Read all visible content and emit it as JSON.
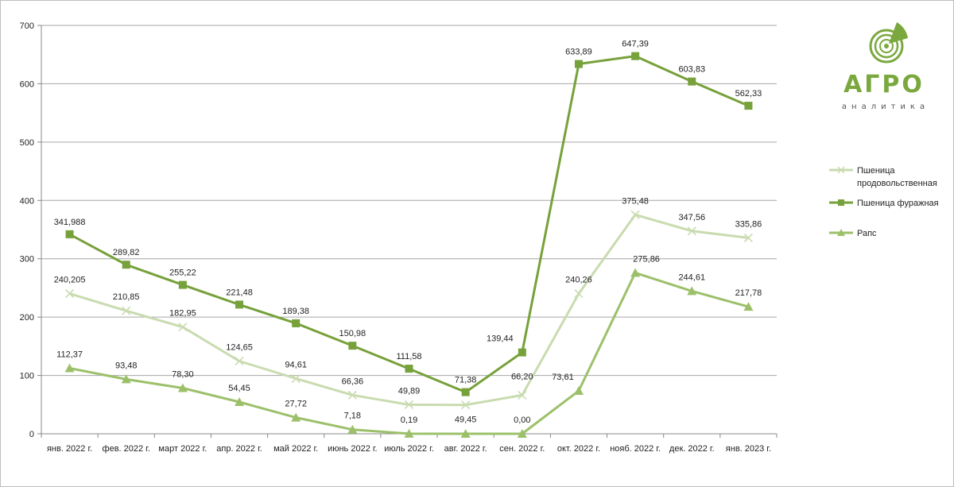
{
  "chart_data": {
    "type": "line",
    "title": "",
    "xlabel": "",
    "ylabel": "",
    "ylim": [
      0,
      700
    ],
    "yticks": [
      "0",
      "100",
      "200",
      "300",
      "400",
      "500",
      "600",
      "700"
    ],
    "categories": [
      "янв. 2022 г.",
      "фев. 2022 г.",
      "март 2022 г.",
      "апр. 2022 г.",
      "май 2022 г.",
      "июнь 2022 г.",
      "июль 2022 г.",
      "авг. 2022 г.",
      "сен. 2022 г.",
      "окт. 2022 г.",
      "нояб. 2022 г.",
      "дек. 2022 г.",
      "янв. 2023 г."
    ],
    "grid": true,
    "legend_position": "right",
    "series": [
      {
        "name": "Пшеница продовольственная",
        "legend_lines": [
          "Пшеница",
          "продовольственная"
        ],
        "marker": "x",
        "color": "#c9dbb0",
        "values": [
          240.205,
          210.85,
          182.95,
          124.65,
          94.61,
          66.36,
          49.89,
          49.45,
          66.2,
          240.26,
          375.48,
          347.56,
          335.86
        ],
        "labels": [
          "240,205",
          "210,85",
          "182,95",
          "124,65",
          "94,61",
          "66,36",
          "49,89",
          "49,45",
          "66,20",
          "240,26",
          "375,48",
          "347,56",
          "335,86"
        ]
      },
      {
        "name": "Пшеница фуражная",
        "legend_lines": [
          "Пшеница фуражная"
        ],
        "marker": "square",
        "color": "#77a13a",
        "values": [
          341.988,
          289.82,
          255.22,
          221.48,
          189.38,
          150.98,
          111.58,
          71.38,
          139.44,
          633.89,
          647.39,
          603.83,
          562.33
        ],
        "labels": [
          "341,988",
          "289,82",
          "255,22",
          "221,48",
          "189,38",
          "150,98",
          "111,58",
          "71,38",
          "139,44",
          "633,89",
          "647,39",
          "603,83",
          "562,33"
        ]
      },
      {
        "name": "Рапс",
        "legend_lines": [
          "Рапс"
        ],
        "marker": "triangle",
        "color": "#9cc06a",
        "values": [
          112.37,
          93.48,
          78.3,
          54.45,
          27.72,
          7.18,
          0.19,
          0.0,
          0.0,
          73.61,
          275.86,
          244.61,
          217.78
        ],
        "labels": [
          "112,37",
          "93,48",
          "78,30",
          "54,45",
          "27,72",
          "7,18",
          "0,19",
          "",
          "0,00",
          "73,61",
          "275,86",
          "244,61",
          "217,78"
        ]
      }
    ]
  },
  "logo": {
    "title": "АГРО",
    "subtitle": "аналитика",
    "icon": "logo-rings-icon",
    "color": "#7aa83e"
  }
}
